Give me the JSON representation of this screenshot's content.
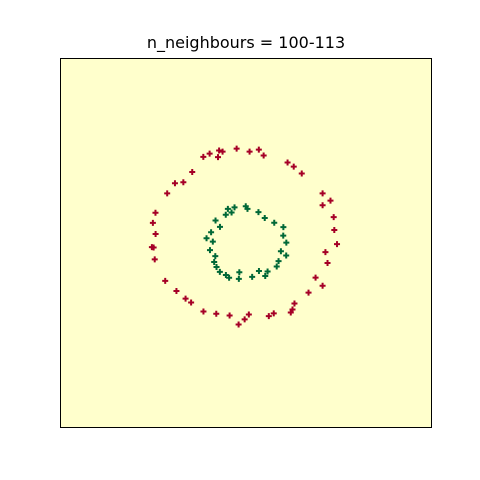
{
  "chart_data": {
    "type": "scatter",
    "title": "n_neighbours = 100-113",
    "xlabel": "",
    "ylabel": "",
    "ticks": "none",
    "grid": false,
    "legend": "none",
    "xlim": [
      -1.5,
      1.5
    ],
    "ylim": [
      -1.5,
      1.5
    ],
    "background_color": "#ffffcc",
    "marker": "plus",
    "series": [
      {
        "class": "outer",
        "color": "#a50026",
        "points": [
          [
            -0.346,
            0.702
          ],
          [
            -0.295,
            0.729
          ],
          [
            -0.19,
            0.745
          ],
          [
            -0.076,
            0.769
          ],
          [
            0.029,
            0.745
          ],
          [
            0.143,
            0.713
          ],
          [
            0.104,
            0.761
          ],
          [
            0.337,
            0.656
          ],
          [
            0.387,
            0.623
          ],
          [
            0.452,
            0.567
          ],
          [
            0.621,
            0.405
          ],
          [
            0.685,
            0.345
          ],
          [
            0.621,
            0.308
          ],
          [
            0.711,
            0.211
          ],
          [
            0.716,
            0.106
          ],
          [
            0.738,
            -0.009
          ],
          [
            0.644,
            -0.074
          ],
          [
            0.661,
            -0.163
          ],
          [
            0.564,
            -0.282
          ],
          [
            0.621,
            -0.349
          ],
          [
            0.507,
            -0.405
          ],
          [
            0.393,
            -0.493
          ],
          [
            0.363,
            -0.567
          ],
          [
            0.377,
            -0.542
          ],
          [
            0.225,
            -0.574
          ],
          [
            0.185,
            -0.596
          ],
          [
            0.023,
            -0.583
          ],
          [
            -0.011,
            -0.623
          ],
          [
            -0.06,
            -0.664
          ],
          [
            -0.133,
            -0.591
          ],
          [
            -0.241,
            -0.577
          ],
          [
            -0.345,
            -0.558
          ],
          [
            -0.445,
            -0.485
          ],
          [
            -0.49,
            -0.453
          ],
          [
            -0.564,
            -0.391
          ],
          [
            -0.655,
            -0.309
          ],
          [
            -0.74,
            -0.134
          ],
          [
            -0.763,
            -0.034
          ],
          [
            -0.749,
            -0.037
          ],
          [
            -0.733,
            0.073
          ],
          [
            -0.755,
            0.164
          ],
          [
            -0.734,
            0.247
          ],
          [
            -0.639,
            0.405
          ],
          [
            -0.576,
            0.487
          ],
          [
            -0.508,
            0.495
          ],
          [
            -0.436,
            0.579
          ],
          [
            -0.227,
            0.7
          ],
          [
            -0.218,
            0.754
          ]
        ]
      },
      {
        "class": "inner",
        "color": "#006837",
        "points": [
          [
            -0.002,
            0.3
          ],
          [
            0.012,
            0.278
          ],
          [
            0.101,
            0.252
          ],
          [
            0.152,
            0.204
          ],
          [
            0.229,
            0.165
          ],
          [
            0.303,
            0.129
          ],
          [
            0.302,
            0.06
          ],
          [
            0.327,
            0.003
          ],
          [
            0.283,
            -0.067
          ],
          [
            0.326,
            -0.102
          ],
          [
            0.264,
            -0.148
          ],
          [
            0.249,
            -0.192
          ],
          [
            0.175,
            -0.232
          ],
          [
            0.156,
            -0.269
          ],
          [
            0.105,
            -0.228
          ],
          [
            0.05,
            -0.276
          ],
          [
            -0.058,
            -0.292
          ],
          [
            -0.054,
            -0.238
          ],
          [
            -0.137,
            -0.283
          ],
          [
            -0.163,
            -0.261
          ],
          [
            -0.212,
            -0.235
          ],
          [
            -0.239,
            -0.196
          ],
          [
            -0.258,
            -0.155
          ],
          [
            -0.249,
            -0.107
          ],
          [
            -0.292,
            -0.058
          ],
          [
            -0.269,
            0.011
          ],
          [
            -0.32,
            0.039
          ],
          [
            -0.283,
            0.088
          ],
          [
            -0.211,
            0.131
          ],
          [
            -0.247,
            0.183
          ],
          [
            -0.164,
            0.23
          ],
          [
            -0.147,
            0.278
          ],
          [
            -0.117,
            0.249
          ],
          [
            -0.093,
            0.29
          ]
        ]
      }
    ]
  }
}
